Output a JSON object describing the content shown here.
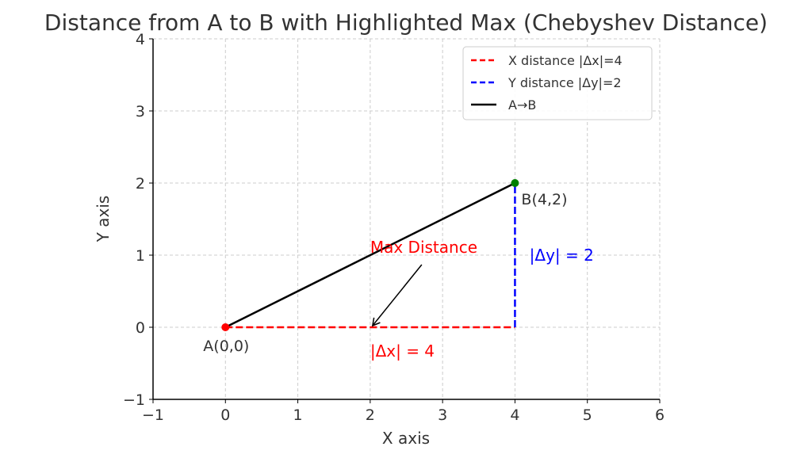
{
  "chart_data": {
    "type": "line",
    "title": "Distance from A to B with Highlighted Max (Chebyshev Distance)",
    "xlabel": "X axis",
    "ylabel": "Y axis",
    "xlim": [
      -1,
      6
    ],
    "ylim": [
      -1,
      4
    ],
    "xticks": [
      -1,
      0,
      1,
      2,
      3,
      4,
      5,
      6
    ],
    "yticks": [
      -1,
      0,
      1,
      2,
      3,
      4
    ],
    "xtick_labels": [
      "−1",
      "0",
      "1",
      "2",
      "3",
      "4",
      "5",
      "6"
    ],
    "ytick_labels": [
      "−1",
      "0",
      "1",
      "2",
      "3",
      "4"
    ],
    "grid": true,
    "legend_position": "top-right",
    "series": [
      {
        "name": "X distance |Δx|=4",
        "style": "dashed",
        "color": "#ff0000",
        "x": [
          0,
          4
        ],
        "y": [
          0,
          0
        ]
      },
      {
        "name": "Y distance |Δy|=2",
        "style": "dashed",
        "color": "#0000ff",
        "x": [
          4,
          4
        ],
        "y": [
          0,
          2
        ]
      },
      {
        "name": "A→B",
        "style": "solid",
        "color": "#000000",
        "x": [
          0,
          4
        ],
        "y": [
          0,
          2
        ]
      }
    ],
    "points": [
      {
        "label": "A(0,0)",
        "x": 0,
        "y": 0,
        "color": "#ff0000"
      },
      {
        "label": "B(4,2)",
        "x": 4,
        "y": 2,
        "color": "#008000"
      }
    ],
    "annotations": [
      {
        "text": "|Δx| = 4",
        "x": 2,
        "y": -0.33,
        "color": "#ff0000"
      },
      {
        "text": "|Δy| = 2",
        "x": 4.2,
        "y": 1,
        "color": "#0000ff"
      },
      {
        "text": "Max Distance",
        "x": 2,
        "y": 1,
        "color": "#ff0000",
        "arrow_to": {
          "x": 2,
          "y": 0
        }
      }
    ]
  }
}
